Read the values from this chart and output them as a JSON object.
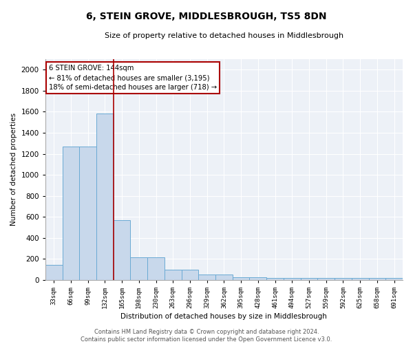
{
  "title": "6, STEIN GROVE, MIDDLESBROUGH, TS5 8DN",
  "subtitle": "Size of property relative to detached houses in Middlesbrough",
  "xlabel": "Distribution of detached houses by size in Middlesbrough",
  "ylabel": "Number of detached properties",
  "categories": [
    "33sqm",
    "66sqm",
    "99sqm",
    "132sqm",
    "165sqm",
    "198sqm",
    "230sqm",
    "263sqm",
    "296sqm",
    "329sqm",
    "362sqm",
    "395sqm",
    "428sqm",
    "461sqm",
    "494sqm",
    "527sqm",
    "559sqm",
    "592sqm",
    "625sqm",
    "658sqm",
    "691sqm"
  ],
  "values": [
    140,
    1270,
    1270,
    1580,
    570,
    215,
    215,
    95,
    95,
    50,
    50,
    25,
    25,
    20,
    20,
    20,
    20,
    20,
    20,
    20,
    20
  ],
  "bar_color": "#c8d8eb",
  "bar_edge_color": "#6aaad4",
  "vline_color": "#aa0000",
  "annotation_text": "6 STEIN GROVE: 144sqm\n← 81% of detached houses are smaller (3,195)\n18% of semi-detached houses are larger (718) →",
  "annotation_box_color": "white",
  "annotation_box_edge": "#aa0000",
  "footer": "Contains HM Land Registry data © Crown copyright and database right 2024.\nContains public sector information licensed under the Open Government Licence v3.0.",
  "background_color": "#edf1f7",
  "ylim": [
    0,
    2100
  ],
  "yticks": [
    0,
    200,
    400,
    600,
    800,
    1000,
    1200,
    1400,
    1600,
    1800,
    2000
  ]
}
